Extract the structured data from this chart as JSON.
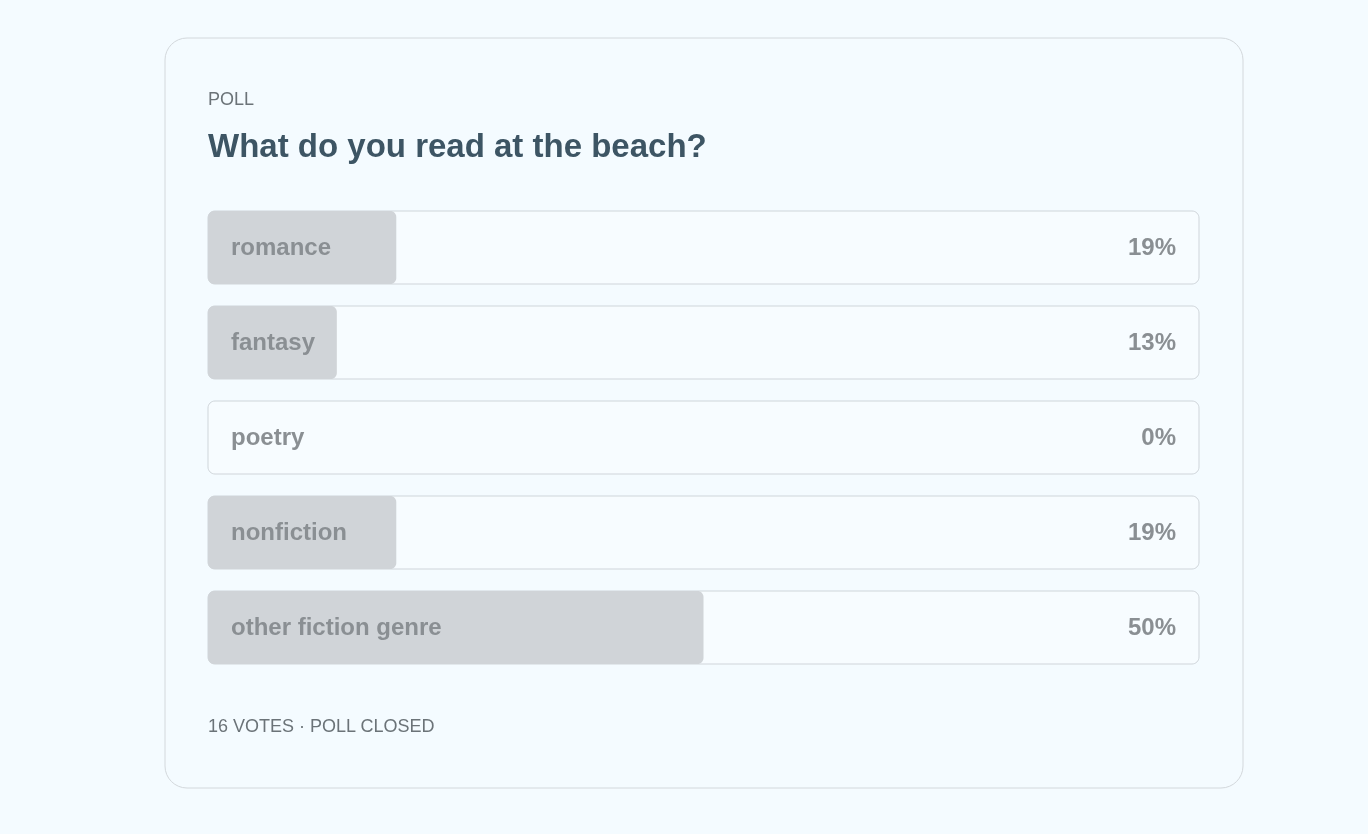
{
  "chart_data": {
    "type": "bar",
    "orientation": "horizontal",
    "title": "What do you read at the beach?",
    "annotations": [
      "POLL",
      "16 VOTES · POLL CLOSED"
    ],
    "categories": [
      "romance",
      "fantasy",
      "poetry",
      "nonfiction",
      "other fiction genre"
    ],
    "values": [
      19,
      13,
      0,
      19,
      50
    ],
    "value_labels": [
      "19%",
      "13%",
      "0%",
      "19%",
      "50%"
    ],
    "xlim": [
      0,
      100
    ],
    "color": "#d0d4d8"
  }
}
